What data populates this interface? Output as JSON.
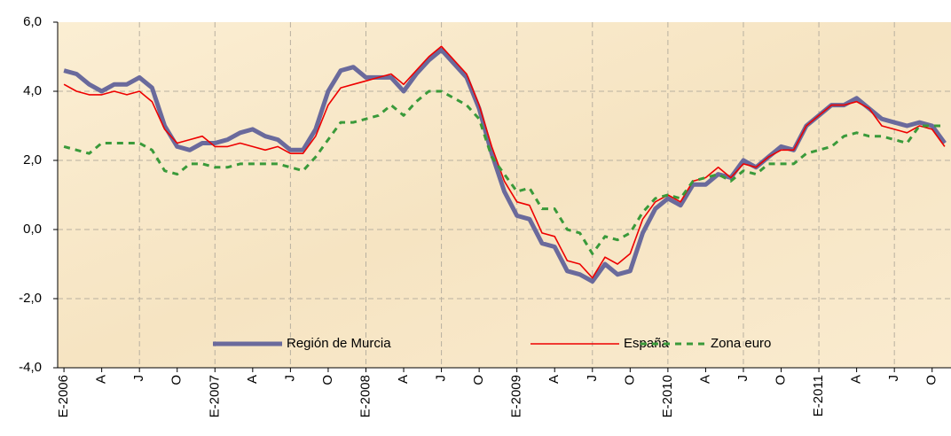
{
  "chart_data": {
    "type": "line",
    "categories": [
      "E-2006",
      null,
      null,
      "A",
      null,
      null,
      "J",
      null,
      null,
      "O",
      null,
      null,
      "E-2007",
      null,
      null,
      "A",
      null,
      null,
      "J",
      null,
      null,
      "O",
      null,
      null,
      "E-2008",
      null,
      null,
      "A",
      null,
      null,
      "J",
      null,
      null,
      "O",
      null,
      null,
      "E-2009",
      null,
      null,
      "A",
      null,
      null,
      "J",
      null,
      null,
      "O",
      null,
      null,
      "E-2010",
      null,
      null,
      "A",
      null,
      null,
      "J",
      null,
      null,
      "O",
      null,
      null,
      "E-2011",
      null,
      null,
      "A",
      null,
      null,
      "J",
      null,
      null,
      "O",
      null
    ],
    "series": [
      {
        "name": "Región de Murcia",
        "color": "#6a6a9c",
        "width": 5,
        "dashed": false,
        "values": [
          4.6,
          4.5,
          4.2,
          4.0,
          4.2,
          4.2,
          4.4,
          4.1,
          3.0,
          2.4,
          2.3,
          2.5,
          2.5,
          2.6,
          2.8,
          2.9,
          2.7,
          2.6,
          2.3,
          2.3,
          2.9,
          4.0,
          4.6,
          4.7,
          4.4,
          4.4,
          4.4,
          4.0,
          4.5,
          4.9,
          5.2,
          4.8,
          4.4,
          3.5,
          2.2,
          1.1,
          0.4,
          0.3,
          -0.4,
          -0.5,
          -1.2,
          -1.3,
          -1.5,
          -1.0,
          -1.3,
          -1.2,
          -0.1,
          0.6,
          0.9,
          0.7,
          1.3,
          1.3,
          1.6,
          1.5,
          2.0,
          1.8,
          2.1,
          2.4,
          2.3,
          3.0,
          3.3,
          3.6,
          3.6,
          3.8,
          3.5,
          3.2,
          3.1,
          3.0,
          3.1,
          3.0,
          2.5
        ]
      },
      {
        "name": "España",
        "color": "#ee0000",
        "width": 1.6,
        "dashed": false,
        "values": [
          4.2,
          4.0,
          3.9,
          3.9,
          4.0,
          3.9,
          4.0,
          3.7,
          2.9,
          2.5,
          2.6,
          2.7,
          2.4,
          2.4,
          2.5,
          2.4,
          2.3,
          2.4,
          2.2,
          2.2,
          2.7,
          3.6,
          4.1,
          4.2,
          4.3,
          4.4,
          4.5,
          4.2,
          4.6,
          5.0,
          5.3,
          4.9,
          4.5,
          3.6,
          2.4,
          1.4,
          0.8,
          0.7,
          -0.1,
          -0.2,
          -0.9,
          -1.0,
          -1.4,
          -0.8,
          -1.0,
          -0.7,
          0.3,
          0.8,
          1.0,
          0.8,
          1.4,
          1.5,
          1.8,
          1.5,
          1.9,
          1.8,
          2.1,
          2.3,
          2.3,
          3.0,
          3.3,
          3.6,
          3.6,
          3.7,
          3.5,
          3.0,
          2.9,
          2.8,
          3.0,
          2.9,
          2.4
        ]
      },
      {
        "name": "Zona euro",
        "color": "#3a9a3a",
        "width": 3,
        "dashed": true,
        "values": [
          2.4,
          2.3,
          2.2,
          2.5,
          2.5,
          2.5,
          2.5,
          2.3,
          1.7,
          1.6,
          1.9,
          1.9,
          1.8,
          1.8,
          1.9,
          1.9,
          1.9,
          1.9,
          1.8,
          1.7,
          2.1,
          2.6,
          3.1,
          3.1,
          3.2,
          3.3,
          3.6,
          3.3,
          3.7,
          4.0,
          4.0,
          3.8,
          3.6,
          3.2,
          2.1,
          1.6,
          1.1,
          1.2,
          0.6,
          0.6,
          0.0,
          -0.1,
          -0.7,
          -0.2,
          -0.3,
          -0.1,
          0.5,
          0.9,
          1.0,
          0.9,
          1.4,
          1.5,
          1.6,
          1.4,
          1.7,
          1.6,
          1.9,
          1.9,
          1.9,
          2.2,
          2.3,
          2.4,
          2.7,
          2.8,
          2.7,
          2.7,
          2.6,
          2.5,
          3.0,
          3.0,
          3.0
        ]
      }
    ],
    "ylim": [
      -4,
      6
    ],
    "yticks": [
      {
        "value": -4,
        "label": "-4,0"
      },
      {
        "value": -2,
        "label": "-2,0"
      },
      {
        "value": 0,
        "label": "0,0"
      },
      {
        "value": 2,
        "label": "2,0"
      },
      {
        "value": 4,
        "label": "4,0"
      },
      {
        "value": 6,
        "label": "6,0"
      }
    ],
    "grid": true,
    "legend": "bottom"
  }
}
